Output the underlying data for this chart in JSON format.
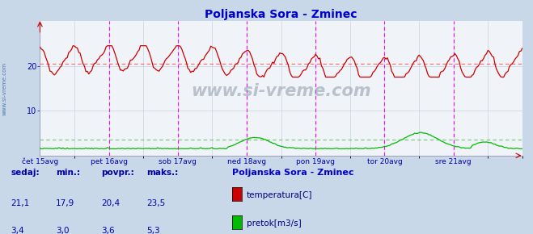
{
  "title": "Poljanska Sora - Zminec",
  "bg_color": "#c8d8e8",
  "plot_bg_color": "#f0f4f8",
  "title_color": "#0000cc",
  "title_fontsize": 10,
  "xlim": [
    0,
    336
  ],
  "ylim": [
    0,
    30
  ],
  "y_ticks": [
    10,
    20
  ],
  "x_tick_positions": [
    0,
    48,
    96,
    144,
    192,
    240,
    288
  ],
  "x_tick_labels": [
    "čet 15avg",
    "pet 16avg",
    "sob 17avg",
    "ned 18avg",
    "pon 19avg",
    "tor 20avg",
    "sre 21avg"
  ],
  "temp_avg_line": 20.4,
  "flow_avg_line": 3.6,
  "temp_color": "#cc0000",
  "flow_color": "#00bb00",
  "watermark": "www.si-vreme.com",
  "legend_title": "Poljanska Sora - Zminec",
  "legend_entries": [
    "temperatura[C]",
    "pretok[m3/s]"
  ],
  "legend_colors": [
    "#cc0000",
    "#00bb00"
  ],
  "table_headers": [
    "sedaj:",
    "min.:",
    "povpr.:",
    "maks.:"
  ],
  "table_values_temp": [
    "21,1",
    "17,9",
    "20,4",
    "23,5"
  ],
  "table_values_flow": [
    "3,4",
    "3,0",
    "3,6",
    "5,3"
  ],
  "n_points": 337,
  "ylabel_text": "www.si-vreme.com"
}
